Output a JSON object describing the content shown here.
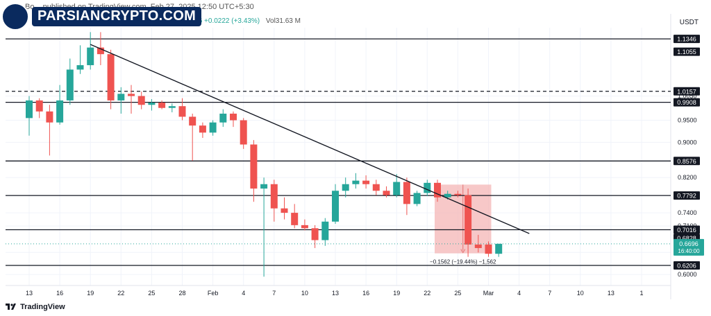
{
  "header": {
    "info_text": "Bo... published on TradingView.com, Feb 27, 2025 12:50 UTC+5:30",
    "ohlc_text": "413 C0.6696 +0.0222 (+3.43%)",
    "volume_text": "Vol31.63 M",
    "currency": "USDT",
    "logo_text": "PARSIANCRYPTO.COM",
    "footer_brand": "TradingView"
  },
  "colors": {
    "up": "#26a69a",
    "down": "#ef5350",
    "level_line": "#131722",
    "trendline": "#131722",
    "measure_fill": "#f4b6b6",
    "measure_label": "#131722",
    "grid": "#f0f3fa",
    "last_price_bg": "#26a69a"
  },
  "chart_data": {
    "type": "candlestick",
    "ylim": [
      0.575,
      1.16
    ],
    "y_ticks": [
      0.6,
      0.65,
      0.71,
      0.74,
      0.82,
      0.9,
      0.95,
      1.005
    ],
    "y_tick_labels": [
      "0.6000",
      "0.6500",
      "0.7100",
      "0.7400",
      "0.8200",
      "0.9000",
      "0.9500",
      "1.0050"
    ],
    "x_tick_labels": [
      {
        "label": "13",
        "index": 0
      },
      {
        "label": "16",
        "index": 3
      },
      {
        "label": "19",
        "index": 6
      },
      {
        "label": "22",
        "index": 9
      },
      {
        "label": "25",
        "index": 12
      },
      {
        "label": "28",
        "index": 15
      },
      {
        "label": "Feb",
        "index": 18
      },
      {
        "label": "4",
        "index": 21
      },
      {
        "label": "7",
        "index": 24
      },
      {
        "label": "10",
        "index": 27
      },
      {
        "label": "13",
        "index": 30
      },
      {
        "label": "16",
        "index": 33
      },
      {
        "label": "19",
        "index": 36
      },
      {
        "label": "22",
        "index": 39
      },
      {
        "label": "25",
        "index": 42
      },
      {
        "label": "Mar",
        "index": 45
      },
      {
        "label": "4",
        "index": 48
      },
      {
        "label": "7",
        "index": 51
      },
      {
        "label": "10",
        "index": 54
      },
      {
        "label": "13",
        "index": 57
      },
      {
        "label": "1",
        "index": 60
      }
    ],
    "candles": [
      {
        "o": 0.955,
        "h": 1.005,
        "l": 0.915,
        "c": 0.995
      },
      {
        "o": 0.995,
        "h": 1.0,
        "l": 0.955,
        "c": 0.97
      },
      {
        "o": 0.97,
        "h": 0.985,
        "l": 0.87,
        "c": 0.945
      },
      {
        "o": 0.945,
        "h": 1.03,
        "l": 0.94,
        "c": 0.995
      },
      {
        "o": 0.995,
        "h": 1.09,
        "l": 0.985,
        "c": 1.065
      },
      {
        "o": 1.065,
        "h": 1.12,
        "l": 1.055,
        "c": 1.075
      },
      {
        "o": 1.075,
        "h": 1.15,
        "l": 1.065,
        "c": 1.115
      },
      {
        "o": 1.115,
        "h": 1.15,
        "l": 1.075,
        "c": 1.1
      },
      {
        "o": 1.1,
        "h": 1.11,
        "l": 0.975,
        "c": 0.995
      },
      {
        "o": 0.995,
        "h": 1.025,
        "l": 0.965,
        "c": 1.01
      },
      {
        "o": 1.01,
        "h": 1.03,
        "l": 0.965,
        "c": 1.005
      },
      {
        "o": 1.005,
        "h": 1.015,
        "l": 0.975,
        "c": 0.985
      },
      {
        "o": 0.985,
        "h": 0.998,
        "l": 0.972,
        "c": 0.99
      },
      {
        "o": 0.99,
        "h": 0.995,
        "l": 0.975,
        "c": 0.978
      },
      {
        "o": 0.978,
        "h": 0.988,
        "l": 0.968,
        "c": 0.982
      },
      {
        "o": 0.982,
        "h": 1.0,
        "l": 0.95,
        "c": 0.958
      },
      {
        "o": 0.958,
        "h": 0.965,
        "l": 0.858,
        "c": 0.938
      },
      {
        "o": 0.938,
        "h": 0.945,
        "l": 0.91,
        "c": 0.922
      },
      {
        "o": 0.922,
        "h": 0.95,
        "l": 0.915,
        "c": 0.945
      },
      {
        "o": 0.945,
        "h": 0.975,
        "l": 0.935,
        "c": 0.965
      },
      {
        "o": 0.965,
        "h": 0.97,
        "l": 0.935,
        "c": 0.95
      },
      {
        "o": 0.95,
        "h": 0.955,
        "l": 0.885,
        "c": 0.895
      },
      {
        "o": 0.895,
        "h": 0.905,
        "l": 0.765,
        "c": 0.795
      },
      {
        "o": 0.795,
        "h": 0.82,
        "l": 0.595,
        "c": 0.805
      },
      {
        "o": 0.805,
        "h": 0.815,
        "l": 0.72,
        "c": 0.75
      },
      {
        "o": 0.75,
        "h": 0.775,
        "l": 0.725,
        "c": 0.74
      },
      {
        "o": 0.74,
        "h": 0.76,
        "l": 0.705,
        "c": 0.712
      },
      {
        "o": 0.712,
        "h": 0.725,
        "l": 0.7,
        "c": 0.705
      },
      {
        "o": 0.705,
        "h": 0.712,
        "l": 0.66,
        "c": 0.678
      },
      {
        "o": 0.678,
        "h": 0.728,
        "l": 0.665,
        "c": 0.72
      },
      {
        "o": 0.72,
        "h": 0.805,
        "l": 0.715,
        "c": 0.79
      },
      {
        "o": 0.79,
        "h": 0.82,
        "l": 0.775,
        "c": 0.805
      },
      {
        "o": 0.805,
        "h": 0.83,
        "l": 0.795,
        "c": 0.813
      },
      {
        "o": 0.813,
        "h": 0.825,
        "l": 0.795,
        "c": 0.805
      },
      {
        "o": 0.805,
        "h": 0.815,
        "l": 0.78,
        "c": 0.79
      },
      {
        "o": 0.79,
        "h": 0.8,
        "l": 0.775,
        "c": 0.78
      },
      {
        "o": 0.78,
        "h": 0.828,
        "l": 0.775,
        "c": 0.81
      },
      {
        "o": 0.81,
        "h": 0.82,
        "l": 0.735,
        "c": 0.76
      },
      {
        "o": 0.76,
        "h": 0.79,
        "l": 0.755,
        "c": 0.785
      },
      {
        "o": 0.785,
        "h": 0.815,
        "l": 0.778,
        "c": 0.808
      },
      {
        "o": 0.808,
        "h": 0.815,
        "l": 0.765,
        "c": 0.775
      },
      {
        "o": 0.775,
        "h": 0.79,
        "l": 0.77,
        "c": 0.783
      },
      {
        "o": 0.783,
        "h": 0.79,
        "l": 0.775,
        "c": 0.78
      },
      {
        "o": 0.78,
        "h": 0.795,
        "l": 0.64,
        "c": 0.668
      },
      {
        "o": 0.668,
        "h": 0.69,
        "l": 0.65,
        "c": 0.66
      },
      {
        "o": 0.668,
        "h": 0.675,
        "l": 0.64,
        "c": 0.647
      },
      {
        "o": 0.647,
        "h": 0.67,
        "l": 0.64,
        "c": 0.6696
      }
    ],
    "horizontal_levels": [
      {
        "value": 1.1346,
        "label": "1.1346",
        "style": "solid"
      },
      {
        "value": 1.1055,
        "label": "1.1055",
        "style": "none"
      },
      {
        "value": 1.0157,
        "label": "1.0157",
        "style": "dashed"
      },
      {
        "value": 0.9908,
        "label": "0.9908",
        "style": "solid"
      },
      {
        "value": 0.8576,
        "label": "0.8576",
        "style": "solid"
      },
      {
        "value": 0.7792,
        "label": "0.7792",
        "style": "solid"
      },
      {
        "value": 0.7016,
        "label": "0.7016",
        "style": "solid"
      },
      {
        "value": 0.6828,
        "label": "0.6828",
        "style": "none"
      },
      {
        "value": 0.6206,
        "label": "0.6206",
        "style": "solid"
      }
    ],
    "last_price": {
      "value": 0.6696,
      "label": "0.6696",
      "countdown": "16:40:00"
    },
    "trendline": {
      "from": {
        "index": 6,
        "value": 1.122
      },
      "to": {
        "index": 49,
        "value": 0.693
      }
    },
    "measure": {
      "from_index": 40,
      "to_index": 45,
      "top": 0.804,
      "bottom": 0.648,
      "label": "−0.1562 (−19.44%) −1,562"
    }
  }
}
